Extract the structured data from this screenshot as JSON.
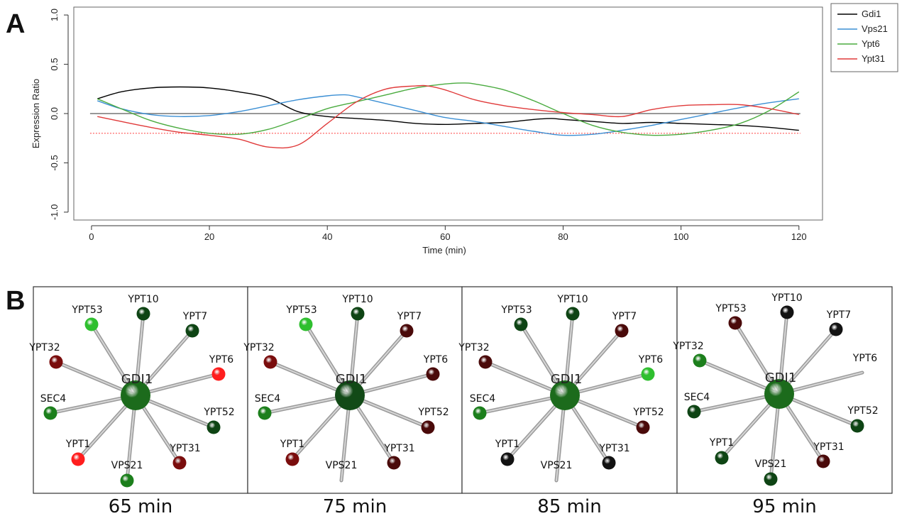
{
  "panels": {
    "a_letter": "A",
    "b_letter": "B"
  },
  "chart_data": {
    "type": "line",
    "xlabel": "Time (min)",
    "ylabel": "Expression Ratio",
    "xlim": [
      -3,
      124
    ],
    "ylim": [
      -1.08,
      1.08
    ],
    "x_ticks": [
      0,
      20,
      40,
      60,
      80,
      100,
      120
    ],
    "y_ticks": [
      -1.0,
      -0.5,
      0.0,
      0.5,
      1.0
    ],
    "x_tick_labels": [
      "0",
      "20",
      "40",
      "60",
      "80",
      "100",
      "120"
    ],
    "y_tick_labels": [
      "-1.0",
      "-0.5",
      "0.0",
      "0.5",
      "1.0"
    ],
    "reference_lines": [
      {
        "y": 0.0,
        "color": "#777777",
        "style": "solid"
      },
      {
        "y": -0.2,
        "color": "#ff6666",
        "style": "dotted"
      }
    ],
    "legend_position": "outside-top-right",
    "series": [
      {
        "name": "Gdi1",
        "color": "#000000",
        "x": [
          1,
          5,
          10,
          15,
          20,
          25,
          30,
          35,
          40,
          45,
          50,
          55,
          60,
          65,
          70,
          75,
          78,
          80,
          85,
          90,
          95,
          100,
          105,
          110,
          115,
          120
        ],
        "y": [
          0.15,
          0.22,
          0.26,
          0.27,
          0.26,
          0.22,
          0.16,
          0.02,
          -0.03,
          -0.05,
          -0.07,
          -0.1,
          -0.11,
          -0.1,
          -0.09,
          -0.06,
          -0.05,
          -0.06,
          -0.08,
          -0.1,
          -0.09,
          -0.1,
          -0.11,
          -0.12,
          -0.14,
          -0.17
        ]
      },
      {
        "name": "Vps21",
        "color": "#3b8fd4",
        "x": [
          1,
          5,
          10,
          15,
          20,
          25,
          30,
          35,
          40,
          43,
          45,
          50,
          55,
          60,
          65,
          70,
          75,
          80,
          85,
          90,
          95,
          100,
          105,
          110,
          115,
          120
        ],
        "y": [
          0.13,
          0.05,
          -0.01,
          -0.03,
          -0.02,
          0.02,
          0.08,
          0.14,
          0.18,
          0.19,
          0.17,
          0.1,
          0.03,
          -0.04,
          -0.08,
          -0.13,
          -0.18,
          -0.22,
          -0.21,
          -0.17,
          -0.12,
          -0.06,
          0.0,
          0.06,
          0.11,
          0.15
        ]
      },
      {
        "name": "Ypt6",
        "color": "#4aab3f",
        "x": [
          1,
          5,
          10,
          15,
          20,
          25,
          30,
          35,
          40,
          45,
          50,
          55,
          60,
          63,
          65,
          70,
          75,
          80,
          85,
          90,
          95,
          100,
          105,
          110,
          115,
          120
        ],
        "y": [
          0.15,
          0.05,
          -0.07,
          -0.15,
          -0.2,
          -0.21,
          -0.16,
          -0.06,
          0.05,
          0.12,
          0.19,
          0.26,
          0.3,
          0.31,
          0.3,
          0.24,
          0.13,
          0.0,
          -0.12,
          -0.19,
          -0.22,
          -0.21,
          -0.17,
          -0.1,
          0.03,
          0.22
        ]
      },
      {
        "name": "Ypt31",
        "color": "#e03a3a",
        "x": [
          1,
          5,
          10,
          15,
          20,
          25,
          30,
          35,
          40,
          45,
          50,
          55,
          57,
          60,
          65,
          70,
          75,
          80,
          85,
          90,
          95,
          100,
          105,
          110,
          115,
          120
        ],
        "y": [
          -0.03,
          -0.08,
          -0.14,
          -0.19,
          -0.22,
          -0.26,
          -0.34,
          -0.32,
          -0.1,
          0.12,
          0.25,
          0.28,
          0.28,
          0.24,
          0.14,
          0.08,
          0.04,
          0.01,
          -0.01,
          -0.03,
          0.04,
          0.08,
          0.09,
          0.09,
          0.05,
          -0.01
        ]
      }
    ]
  },
  "networks": {
    "hub": "GDI1",
    "colors": {
      "red": "#ff1e1e",
      "darkred": "#7a0d0d",
      "maroon": "#4a0a0a",
      "bright_green": "#2fbf2f",
      "green": "#1c7f1c",
      "darkgreen": "#0e4414",
      "black": "#121212"
    },
    "frames": [
      {
        "label": "65 min",
        "hub_color": "#1c6b1c",
        "nodes": [
          {
            "name": "YPT10",
            "color": "darkgreen"
          },
          {
            "name": "YPT53",
            "color": "bright_green"
          },
          {
            "name": "YPT7",
            "color": "darkgreen"
          },
          {
            "name": "YPT32",
            "color": "darkred"
          },
          {
            "name": "YPT6",
            "color": "red"
          },
          {
            "name": "SEC4",
            "color": "green"
          },
          {
            "name": "YPT52",
            "color": "darkgreen"
          },
          {
            "name": "YPT1",
            "color": "red"
          },
          {
            "name": "YPT31",
            "color": "darkred"
          },
          {
            "name": "VPS21",
            "color": "green"
          }
        ]
      },
      {
        "label": "75 min",
        "hub_color": "#124a17",
        "nodes": [
          {
            "name": "YPT10",
            "color": "darkgreen"
          },
          {
            "name": "YPT53",
            "color": "bright_green"
          },
          {
            "name": "YPT7",
            "color": "maroon"
          },
          {
            "name": "YPT32",
            "color": "darkred"
          },
          {
            "name": "YPT6",
            "color": "maroon"
          },
          {
            "name": "SEC4",
            "color": "green"
          },
          {
            "name": "YPT52",
            "color": "maroon"
          },
          {
            "name": "YPT1",
            "color": "darkred"
          },
          {
            "name": "YPT31",
            "color": "maroon"
          },
          {
            "name": "VPS21",
            "color": "none"
          }
        ]
      },
      {
        "label": "85 min",
        "hub_color": "#1c6b1c",
        "nodes": [
          {
            "name": "YPT10",
            "color": "darkgreen"
          },
          {
            "name": "YPT53",
            "color": "darkgreen"
          },
          {
            "name": "YPT7",
            "color": "maroon"
          },
          {
            "name": "YPT32",
            "color": "maroon"
          },
          {
            "name": "YPT6",
            "color": "bright_green"
          },
          {
            "name": "SEC4",
            "color": "green"
          },
          {
            "name": "YPT52",
            "color": "maroon"
          },
          {
            "name": "YPT1",
            "color": "black"
          },
          {
            "name": "YPT31",
            "color": "black"
          },
          {
            "name": "VPS21",
            "color": "none"
          }
        ]
      },
      {
        "label": "95 min",
        "hub_color": "#1c6b1c",
        "nodes": [
          {
            "name": "YPT10",
            "color": "black"
          },
          {
            "name": "YPT53",
            "color": "maroon"
          },
          {
            "name": "YPT7",
            "color": "black"
          },
          {
            "name": "YPT32",
            "color": "green"
          },
          {
            "name": "YPT6",
            "color": "none"
          },
          {
            "name": "SEC4",
            "color": "darkgreen"
          },
          {
            "name": "YPT52",
            "color": "darkgreen"
          },
          {
            "name": "YPT1",
            "color": "darkgreen"
          },
          {
            "name": "YPT31",
            "color": "maroon"
          },
          {
            "name": "VPS21",
            "color": "darkgreen"
          }
        ]
      }
    ]
  }
}
